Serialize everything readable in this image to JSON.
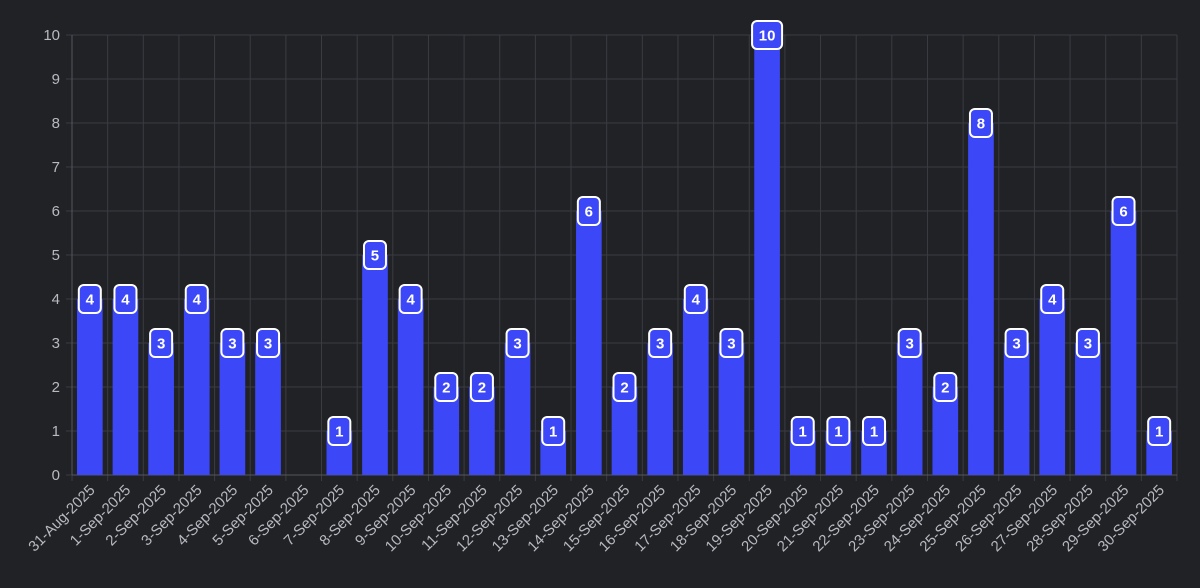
{
  "chart_data": {
    "type": "bar",
    "categories": [
      "31-Aug-2025",
      "1-Sep-2025",
      "2-Sep-2025",
      "3-Sep-2025",
      "4-Sep-2025",
      "5-Sep-2025",
      "6-Sep-2025",
      "7-Sep-2025",
      "8-Sep-2025",
      "9-Sep-2025",
      "10-Sep-2025",
      "11-Sep-2025",
      "12-Sep-2025",
      "13-Sep-2025",
      "14-Sep-2025",
      "15-Sep-2025",
      "16-Sep-2025",
      "17-Sep-2025",
      "18-Sep-2025",
      "19-Sep-2025",
      "20-Sep-2025",
      "21-Sep-2025",
      "22-Sep-2025",
      "23-Sep-2025",
      "24-Sep-2025",
      "25-Sep-2025",
      "26-Sep-2025",
      "27-Sep-2025",
      "28-Sep-2025",
      "29-Sep-2025",
      "30-Sep-2025"
    ],
    "values": [
      4,
      4,
      3,
      4,
      3,
      3,
      0,
      1,
      5,
      4,
      2,
      2,
      3,
      1,
      6,
      2,
      3,
      4,
      3,
      10,
      1,
      1,
      1,
      3,
      2,
      8,
      3,
      4,
      3,
      6,
      1
    ],
    "title": "",
    "xlabel": "",
    "ylabel": "",
    "ylim": [
      0,
      10
    ],
    "yticks": [
      0,
      1,
      2,
      3,
      4,
      5,
      6,
      7,
      8,
      9,
      10
    ],
    "grid": true,
    "legend": "none",
    "data_labels": true,
    "colors": {
      "background": "#212226",
      "bar": "#3c48f7",
      "grid": "#3a3c42",
      "tick_text": "#b8bac2",
      "label_text": "#ffffff",
      "label_border": "#ffffff"
    }
  }
}
